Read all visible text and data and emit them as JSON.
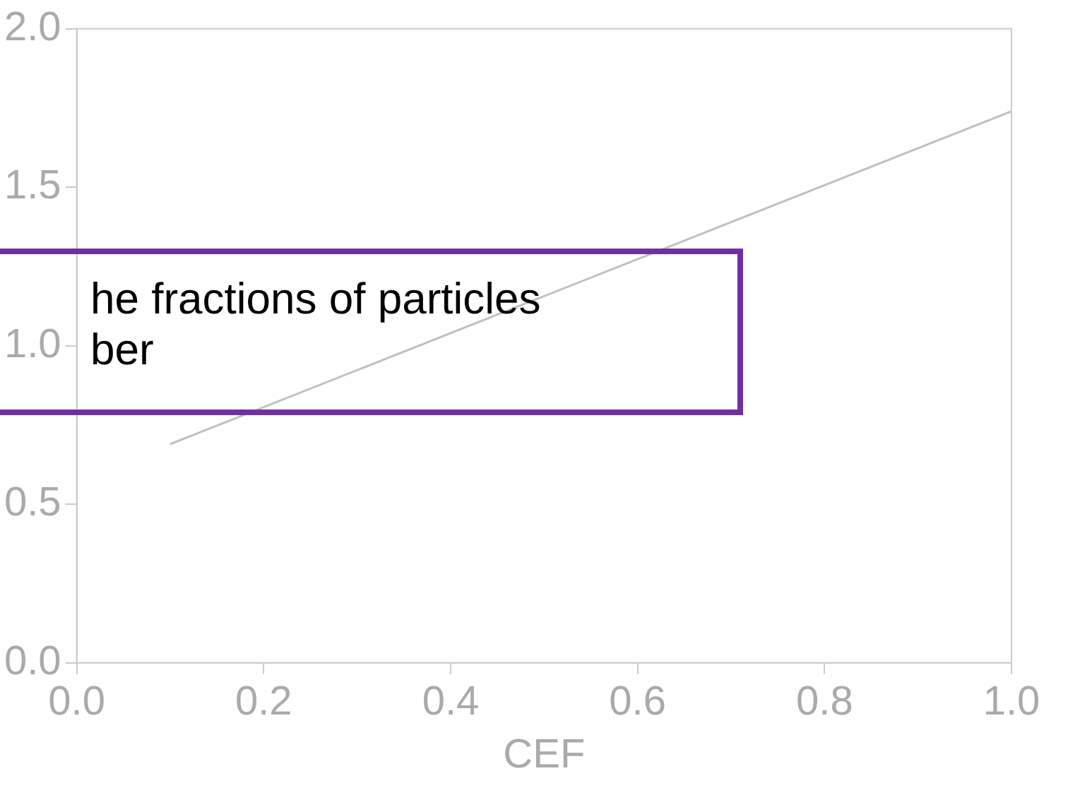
{
  "chart_data": {
    "type": "line",
    "xlabel": "CEF",
    "x": [
      0.1,
      1.0
    ],
    "series": [
      {
        "color": "#c0c0c0",
        "values": [
          0.69,
          1.74
        ]
      }
    ],
    "xlim": [
      0,
      1
    ],
    "xticks": [
      {
        "value": 0,
        "label": "0.0"
      },
      {
        "value": 0.2,
        "label": "0.2"
      },
      {
        "value": 0.4,
        "label": "0.4"
      },
      {
        "value": 0.6,
        "label": "0.6"
      },
      {
        "value": 0.8,
        "label": "0.8"
      },
      {
        "value": 1,
        "label": "1.0"
      }
    ],
    "ylim": [
      0,
      2
    ],
    "yticks": [
      {
        "value": 0,
        "label": "0.0"
      },
      {
        "value": 0.5,
        "label": "0.5"
      },
      {
        "value": 1,
        "label": "1.0"
      },
      {
        "value": 1.5,
        "label": "1.5"
      },
      {
        "value": 2,
        "label": "2.0"
      }
    ],
    "grid": false,
    "legend": false,
    "marker": "none",
    "line_style": "solid",
    "annotations": [
      "he fractions of particles\nber"
    ]
  }
}
